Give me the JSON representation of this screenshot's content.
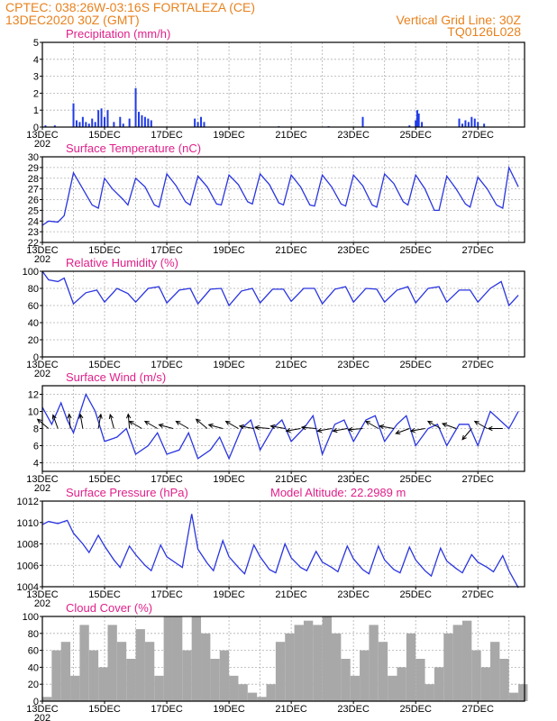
{
  "header": {
    "line1": "CPTEC:   038:26W-03:16S  FORTALEZA (CE)",
    "line2": "13DEC2020 30Z (GMT)",
    "grid_note": "Vertical Grid Line: 30Z",
    "code": "TQ0126L028"
  },
  "colors": {
    "header": "#e8821e",
    "panel_title": "#e0208a",
    "line": "#2a35e0",
    "bar": "#1f3be8",
    "cloud": "#a8a8a8",
    "grid": "#b0b0b0"
  },
  "x_axis": {
    "days": [
      "13DEC",
      "15DEC",
      "17DEC",
      "19DEC",
      "21DEC",
      "23DEC",
      "25DEC",
      "27DEC"
    ],
    "year_stub": "202",
    "day_range": [
      13,
      28.5
    ]
  },
  "chart_data": [
    {
      "id": "precip",
      "type": "bar",
      "title": "Precipitation (mm/h)",
      "ylim": [
        0,
        5
      ],
      "yticks": [
        "0",
        "1",
        "2",
        "3",
        "4",
        "5"
      ],
      "x": [
        13.1,
        13.4,
        14.0,
        14.1,
        14.2,
        14.3,
        14.4,
        14.5,
        14.6,
        14.7,
        14.8,
        14.9,
        15.0,
        15.1,
        15.3,
        15.5,
        15.6,
        15.8,
        16.0,
        16.1,
        16.2,
        16.3,
        16.4,
        16.5,
        17.9,
        18.0,
        18.1,
        18.2,
        20.6,
        22.2,
        23.3,
        24.8,
        25.0,
        25.05,
        25.1,
        25.2,
        26.4,
        26.5,
        26.6,
        26.7,
        26.8,
        26.9,
        27.0,
        27.2
      ],
      "values": [
        0.1,
        0.1,
        1.4,
        0.4,
        0.3,
        0.6,
        0.3,
        0.2,
        0.5,
        0.3,
        1.0,
        1.1,
        0.6,
        1.0,
        0.3,
        0.6,
        0.2,
        0.5,
        2.3,
        0.9,
        0.7,
        0.6,
        0.5,
        0.4,
        0.5,
        0.3,
        0.6,
        0.3,
        0.05,
        0.05,
        0.6,
        0.1,
        0.4,
        1.0,
        0.8,
        0.3,
        0.5,
        0.2,
        0.4,
        0.3,
        0.6,
        0.5,
        0.3,
        0.2
      ]
    },
    {
      "id": "temp",
      "type": "line",
      "title": "Surface Temperature (nC)",
      "ylim": [
        22,
        30
      ],
      "yticks": [
        "22",
        "23",
        "24",
        "25",
        "26",
        "27",
        "28",
        "29",
        "30"
      ],
      "x": [
        13.0,
        13.2,
        13.5,
        13.7,
        14.0,
        14.3,
        14.6,
        14.8,
        15.0,
        15.25,
        15.6,
        15.75,
        16.0,
        16.3,
        16.6,
        16.75,
        17.0,
        17.3,
        17.6,
        17.75,
        18.0,
        18.3,
        18.6,
        18.75,
        19.0,
        19.3,
        19.6,
        19.75,
        20.0,
        20.3,
        20.6,
        20.75,
        21.0,
        21.3,
        21.6,
        21.75,
        22.0,
        22.3,
        22.6,
        22.75,
        23.0,
        23.3,
        23.6,
        23.75,
        24.0,
        24.3,
        24.6,
        24.75,
        25.0,
        25.3,
        25.6,
        25.75,
        26.0,
        26.3,
        26.6,
        26.75,
        27.0,
        27.3,
        27.6,
        27.8,
        28.0,
        28.3
      ],
      "values": [
        23.6,
        24.0,
        23.9,
        24.5,
        28.5,
        27.0,
        25.5,
        25.2,
        28.0,
        27.0,
        26.0,
        25.5,
        28.0,
        27.2,
        25.5,
        25.3,
        28.4,
        27.3,
        25.8,
        25.5,
        28.2,
        27.2,
        25.6,
        25.5,
        28.3,
        27.4,
        25.8,
        25.6,
        28.4,
        27.4,
        25.7,
        25.5,
        28.3,
        27.2,
        25.5,
        25.4,
        28.3,
        27.2,
        25.6,
        25.4,
        28.3,
        27.3,
        25.5,
        25.3,
        28.4,
        27.5,
        25.8,
        25.5,
        28.3,
        27.0,
        25.0,
        25.0,
        28.2,
        27.0,
        25.6,
        25.3,
        28.1,
        27.0,
        25.5,
        25.2,
        29.0,
        27.2
      ]
    },
    {
      "id": "rh",
      "type": "line",
      "title": "Relative Humidity (%)",
      "ylim": [
        0,
        100
      ],
      "yticks": [
        "0",
        "20",
        "40",
        "60",
        "80",
        "100"
      ],
      "x": [
        13.0,
        13.2,
        13.5,
        13.7,
        14.0,
        14.4,
        14.75,
        15.0,
        15.4,
        15.75,
        16.0,
        16.4,
        16.75,
        17.0,
        17.4,
        17.75,
        18.0,
        18.4,
        18.75,
        19.0,
        19.4,
        19.75,
        20.0,
        20.4,
        20.75,
        21.0,
        21.4,
        21.75,
        22.0,
        22.4,
        22.75,
        23.0,
        23.4,
        23.75,
        24.0,
        24.4,
        24.75,
        25.0,
        25.4,
        25.75,
        26.0,
        26.4,
        26.75,
        27.0,
        27.4,
        27.75,
        28.0,
        28.3
      ],
      "values": [
        100,
        90,
        88,
        92,
        62,
        75,
        78,
        64,
        80,
        74,
        64,
        80,
        82,
        63,
        78,
        80,
        62,
        79,
        80,
        60,
        77,
        80,
        63,
        79,
        79,
        65,
        80,
        80,
        62,
        79,
        82,
        64,
        80,
        79,
        64,
        78,
        82,
        63,
        80,
        82,
        64,
        78,
        78,
        64,
        80,
        88,
        60,
        72
      ]
    },
    {
      "id": "wind",
      "type": "line",
      "title": "Surface Wind (m/s)",
      "ylim": [
        3,
        13
      ],
      "yticks": [
        "4",
        "6",
        "8",
        "10",
        "12"
      ],
      "x": [
        13.0,
        13.3,
        13.6,
        13.8,
        14.0,
        14.4,
        14.7,
        15.0,
        15.4,
        15.7,
        16.0,
        16.4,
        16.7,
        17.0,
        17.4,
        17.7,
        18.0,
        18.4,
        18.7,
        19.0,
        19.4,
        19.7,
        20.0,
        20.4,
        20.7,
        21.0,
        21.4,
        21.7,
        22.0,
        22.4,
        22.7,
        23.0,
        23.4,
        23.7,
        24.0,
        24.4,
        24.7,
        25.0,
        25.4,
        25.7,
        26.0,
        26.4,
        26.7,
        27.0,
        27.4,
        27.7,
        28.0,
        28.3
      ],
      "values": [
        10.5,
        8.5,
        11.0,
        9.0,
        7.5,
        12.0,
        10.0,
        6.5,
        7.0,
        8.0,
        5.0,
        6.0,
        7.5,
        5.0,
        5.5,
        7.5,
        4.5,
        5.5,
        7.0,
        4.5,
        8.0,
        9.0,
        5.5,
        8.0,
        9.0,
        6.5,
        8.0,
        9.5,
        5.0,
        8.5,
        9.0,
        6.5,
        9.0,
        9.5,
        6.5,
        8.5,
        9.5,
        6.0,
        8.0,
        8.5,
        6.0,
        8.5,
        8.5,
        6.0,
        10.0,
        9.0,
        8.0,
        10.0
      ],
      "arrows": {
        "x": [
          13.2,
          13.5,
          13.9,
          14.3,
          14.8,
          15.3,
          15.8,
          16.2,
          16.7,
          17.2,
          17.7,
          18.3,
          18.8,
          19.3,
          19.8,
          20.3,
          20.8,
          21.3,
          21.8,
          22.3,
          22.8,
          23.3,
          23.8,
          24.3,
          24.8,
          25.3,
          25.8,
          26.3,
          26.8,
          27.3,
          27.8
        ],
        "dir_deg": [
          140,
          110,
          95,
          100,
          80,
          105,
          95,
          150,
          150,
          165,
          150,
          140,
          165,
          150,
          170,
          175,
          170,
          190,
          175,
          190,
          190,
          185,
          150,
          170,
          200,
          190,
          150,
          160,
          230,
          150,
          180
        ]
      }
    },
    {
      "id": "pressure",
      "type": "line",
      "title": "Surface Pressure (hPa)",
      "model_altitude": "Model Altitude: 22.2989 m",
      "ylim": [
        1004,
        1012
      ],
      "yticks": [
        "1004",
        "1006",
        "1008",
        "1010",
        "1012"
      ],
      "x": [
        13.0,
        13.2,
        13.5,
        13.8,
        14.0,
        14.3,
        14.5,
        14.8,
        15.0,
        15.3,
        15.5,
        15.8,
        16.0,
        16.3,
        16.5,
        16.8,
        17.0,
        17.3,
        17.5,
        17.8,
        18.0,
        18.3,
        18.5,
        18.8,
        19.0,
        19.3,
        19.5,
        19.8,
        20.0,
        20.3,
        20.5,
        20.8,
        21.0,
        21.3,
        21.5,
        21.8,
        22.0,
        22.3,
        22.5,
        22.8,
        23.0,
        23.3,
        23.5,
        23.8,
        24.0,
        24.3,
        24.5,
        24.8,
        25.0,
        25.3,
        25.5,
        25.8,
        26.0,
        26.3,
        26.5,
        26.8,
        27.0,
        27.3,
        27.5,
        27.8,
        28.0,
        28.3
      ],
      "values": [
        1009.8,
        1010.1,
        1009.9,
        1010.2,
        1009.0,
        1008.0,
        1007.2,
        1008.8,
        1007.8,
        1006.5,
        1005.8,
        1007.8,
        1007.0,
        1006.0,
        1005.5,
        1007.9,
        1006.8,
        1006.2,
        1005.8,
        1010.8,
        1007.5,
        1006.2,
        1005.5,
        1008.3,
        1006.8,
        1005.8,
        1005.2,
        1007.9,
        1006.8,
        1005.6,
        1005.3,
        1008.0,
        1006.7,
        1005.8,
        1005.5,
        1007.3,
        1006.3,
        1005.8,
        1005.4,
        1007.8,
        1006.6,
        1005.6,
        1005.2,
        1007.8,
        1006.5,
        1005.6,
        1005.3,
        1007.7,
        1006.5,
        1005.5,
        1005.0,
        1007.6,
        1006.4,
        1005.7,
        1005.3,
        1007.0,
        1006.3,
        1005.8,
        1005.4,
        1006.9,
        1005.5,
        1003.9
      ]
    },
    {
      "id": "cloud",
      "type": "area",
      "title": "Cloud Cover (%)",
      "ylim": [
        0,
        100
      ],
      "yticks": [
        "0",
        "20",
        "40",
        "60",
        "80",
        "100"
      ],
      "x": [
        13.0,
        13.3,
        13.6,
        13.9,
        14.2,
        14.5,
        14.8,
        15.1,
        15.4,
        15.7,
        16.0,
        16.3,
        16.6,
        16.9,
        17.2,
        17.5,
        17.8,
        18.1,
        18.4,
        18.7,
        19.0,
        19.3,
        19.6,
        19.9,
        20.2,
        20.5,
        20.8,
        21.1,
        21.4,
        21.7,
        22.0,
        22.3,
        22.6,
        22.9,
        23.2,
        23.5,
        23.8,
        24.1,
        24.4,
        24.7,
        25.0,
        25.3,
        25.6,
        25.9,
        26.2,
        26.5,
        26.8,
        27.1,
        27.4,
        27.7,
        28.0,
        28.3
      ],
      "values": [
        5,
        60,
        70,
        30,
        90,
        60,
        40,
        90,
        70,
        50,
        85,
        70,
        30,
        100,
        100,
        60,
        100,
        80,
        50,
        60,
        30,
        20,
        10,
        5,
        20,
        70,
        80,
        90,
        95,
        90,
        100,
        80,
        50,
        30,
        60,
        90,
        70,
        30,
        40,
        80,
        50,
        20,
        40,
        80,
        90,
        95,
        60,
        40,
        70,
        50,
        10,
        20
      ]
    }
  ]
}
